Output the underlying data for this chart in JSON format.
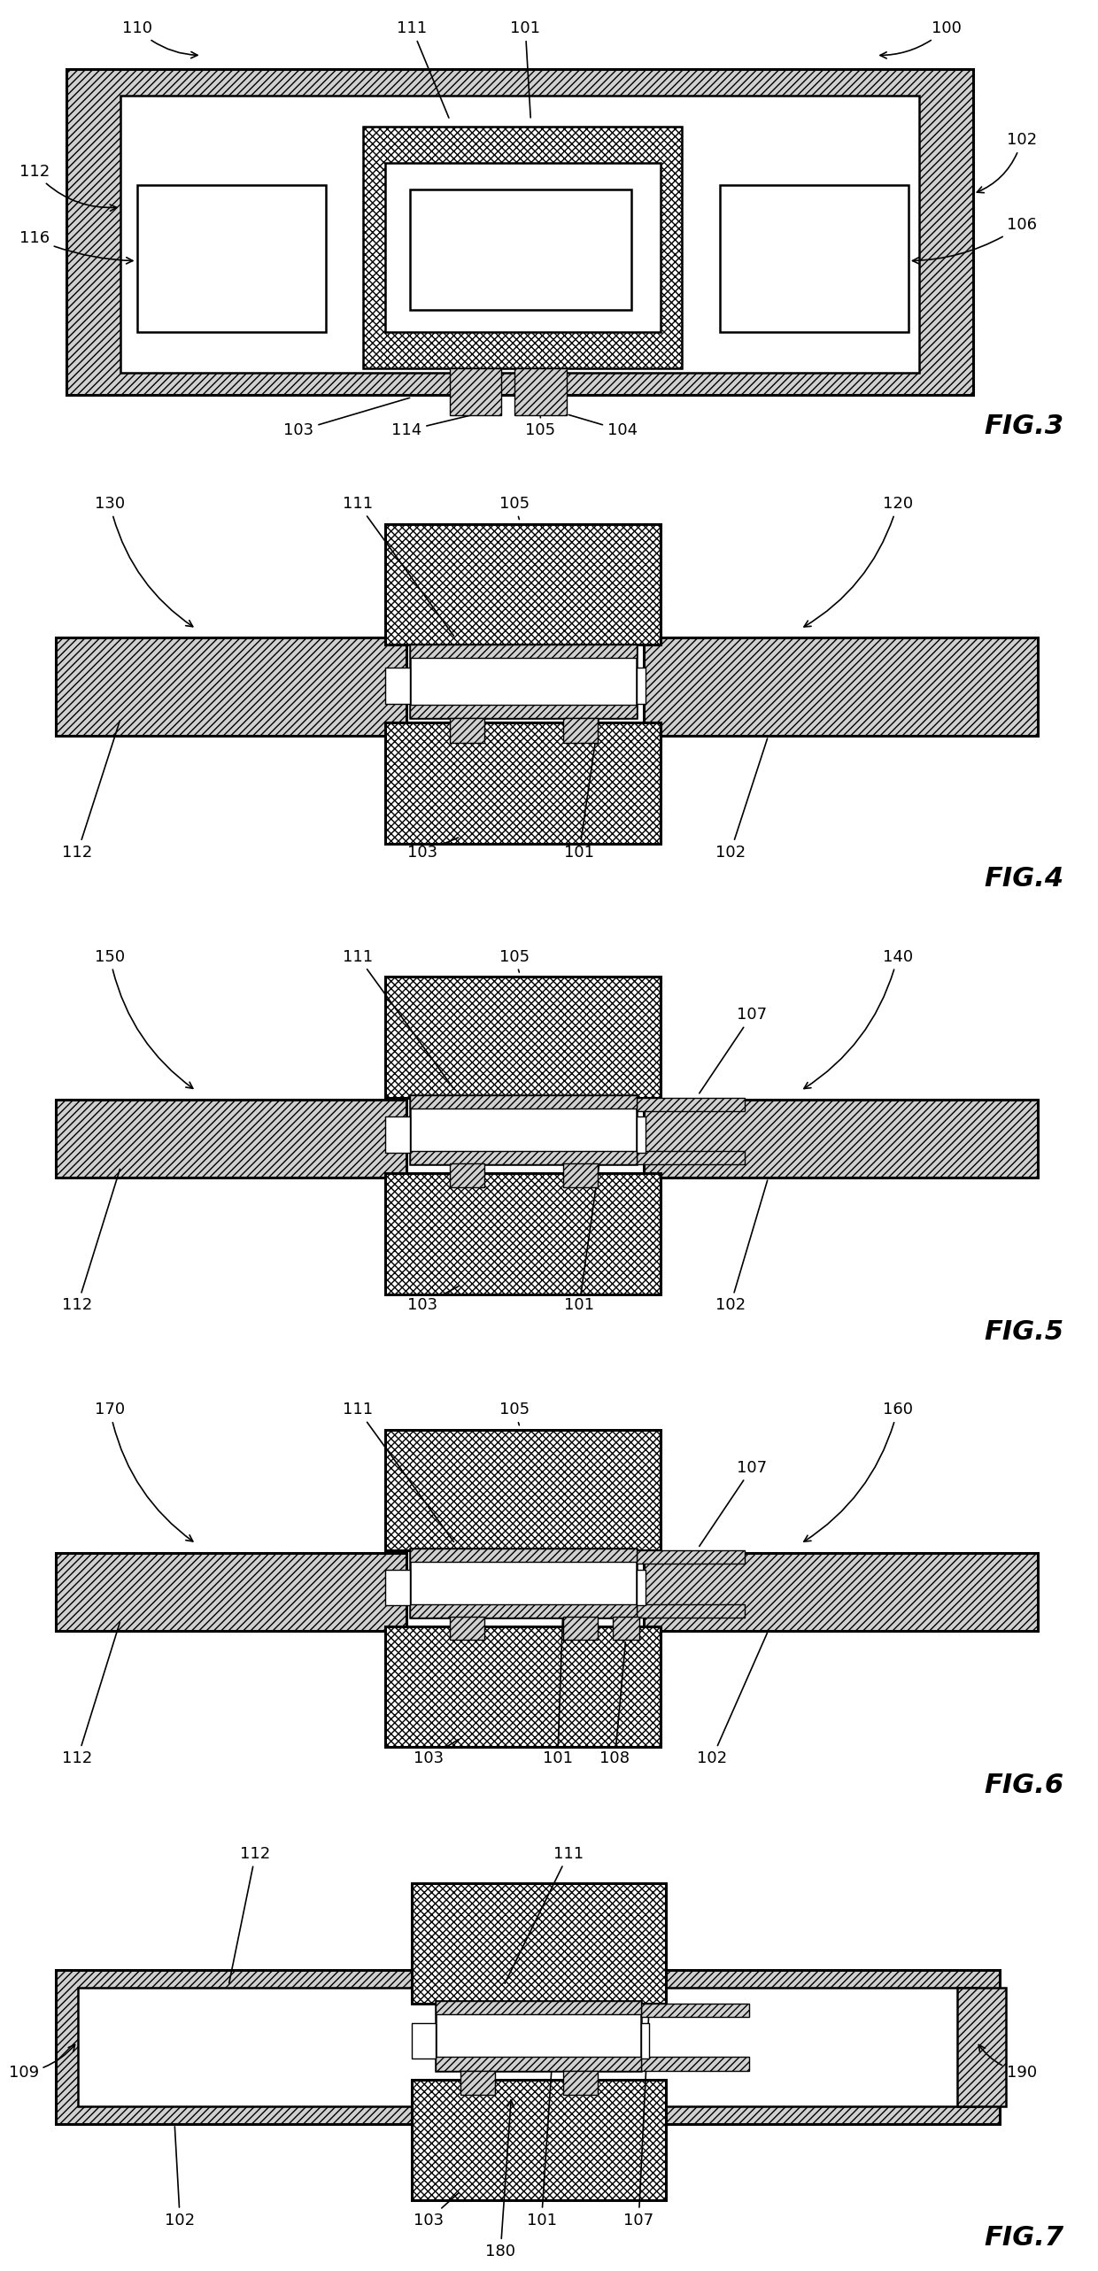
{
  "background_color": "#ffffff",
  "lw": 1.8,
  "lw_thick": 2.2,
  "font_size_label": 13,
  "font_size_fig": 22,
  "gray_fill": "#d0d0d0",
  "fig_titles": [
    "FIG.3",
    "FIG.4",
    "FIG.5",
    "FIG.6",
    "FIG.7"
  ]
}
